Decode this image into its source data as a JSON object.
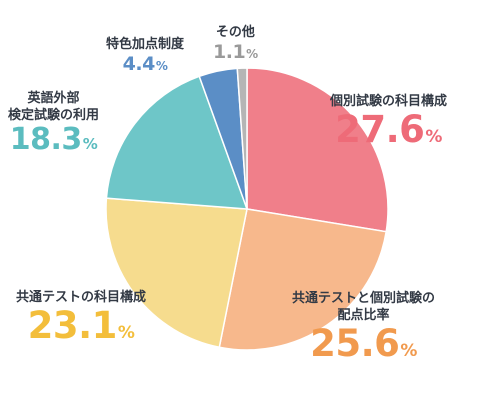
{
  "chart_data": {
    "type": "pie",
    "title": "",
    "slices": [
      {
        "label": "個別試験の科目構成",
        "value": 27.6,
        "color": "#f07f8a",
        "label_color": "#ee6b78"
      },
      {
        "label": "共通テストと個別試験の配点比率",
        "value": 25.6,
        "color": "#f7b88c",
        "label_color": "#f19a4e"
      },
      {
        "label": "共通テストの科目構成",
        "value": 23.1,
        "color": "#f6dc8e",
        "label_color": "#f3be3b"
      },
      {
        "label": "英語外部検定試験の利用",
        "value": 18.3,
        "color": "#6ec6c8",
        "label_color": "#5bbcbf"
      },
      {
        "label": "特色加点制度",
        "value": 4.4,
        "color": "#5b8ec6",
        "label_color": "#5b8ec6"
      },
      {
        "label": "その他",
        "value": 1.1,
        "color": "#b5b5b5",
        "label_color": "#9a9a9a"
      }
    ],
    "unit": "%",
    "start_angle": "12 o'clock",
    "direction": "clockwise",
    "legend": "none"
  },
  "labels": {
    "slice0_name": "個別試験の科目構成",
    "slice0_num": "27.6",
    "slice1_line1": "共通テストと個別試験の",
    "slice1_line2": "配点比率",
    "slice1_num": "25.6",
    "slice2_name": "共通テストの科目構成",
    "slice2_num": "23.1",
    "slice3_line1": "英語外部",
    "slice3_line2": "検定試験の利用",
    "slice3_num": "18.3",
    "slice4_name": "特色加点制度",
    "slice4_num": "4.4",
    "slice5_name": "その他",
    "slice5_num": "1.1",
    "pct": "%"
  }
}
